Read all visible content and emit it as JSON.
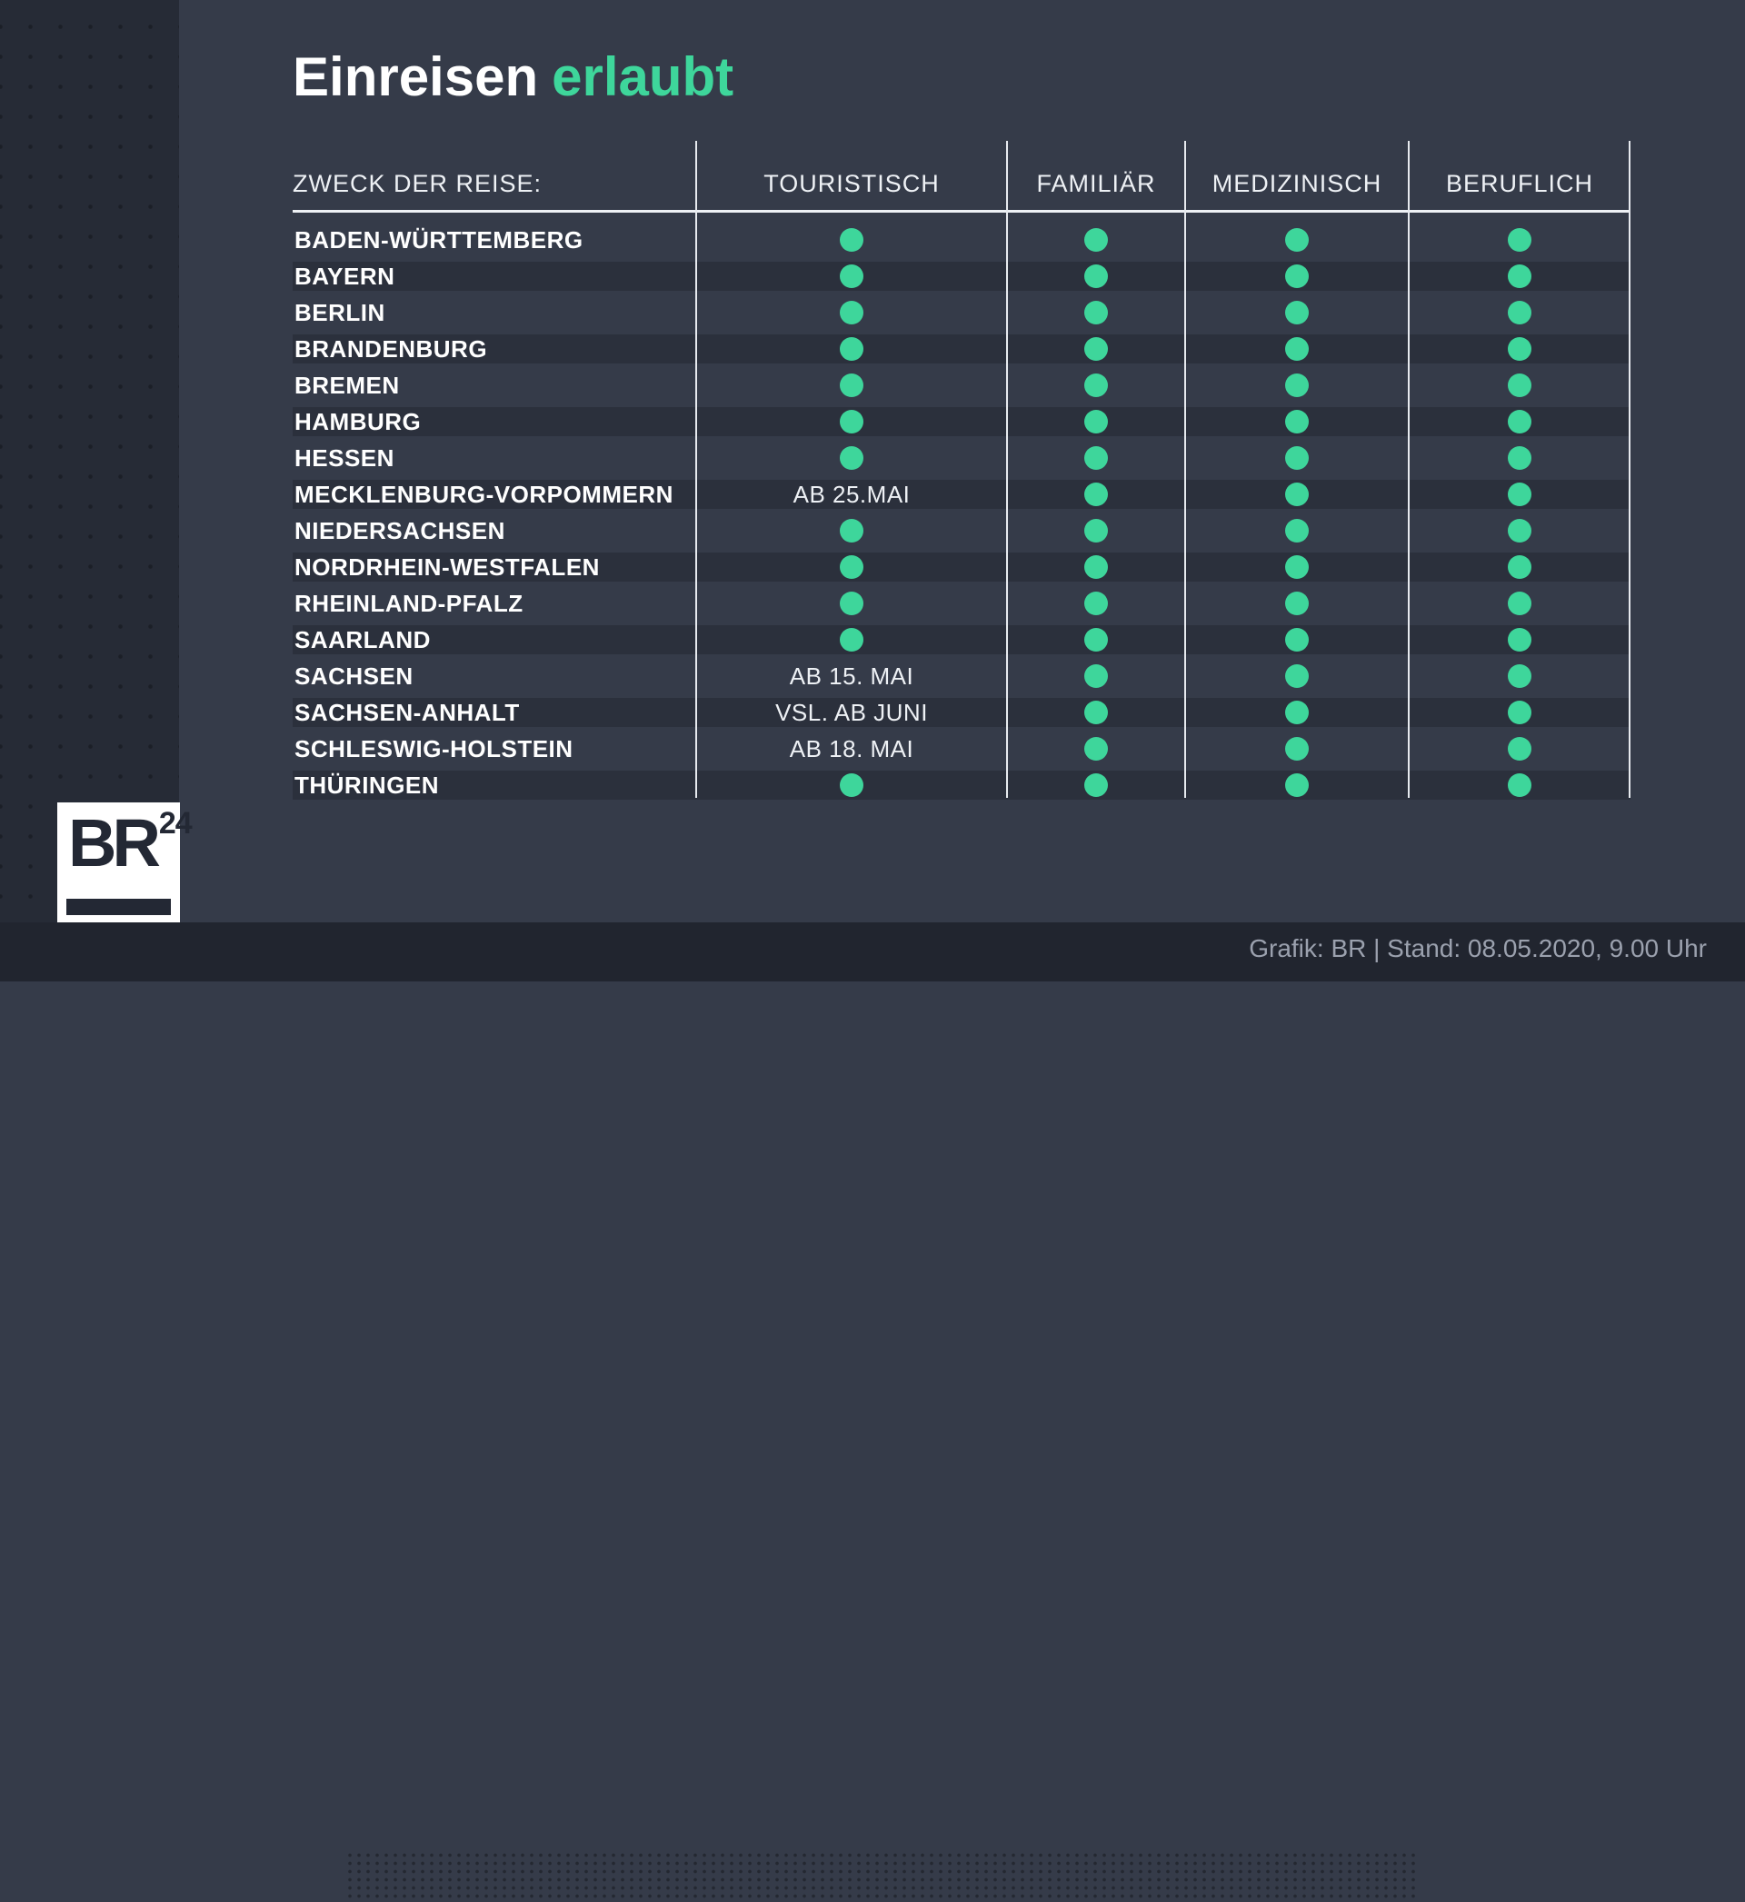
{
  "chart_data": {
    "type": "table",
    "title": {
      "main": "Einreisen",
      "highlight": "erlaubt"
    },
    "purpose_label": "ZWECK DER REISE:",
    "columns": [
      "TOURISTISCH",
      "FAMILIÄR",
      "MEDIZINISCH",
      "BERUFLICH"
    ],
    "allowed_symbol": "green-dot",
    "rows": [
      {
        "state": "BADEN-WÜRTTEMBERG",
        "touristisch": "erlaubt",
        "familiaer": "erlaubt",
        "medizinisch": "erlaubt",
        "beruflich": "erlaubt"
      },
      {
        "state": "BAYERN",
        "touristisch": "erlaubt",
        "familiaer": "erlaubt",
        "medizinisch": "erlaubt",
        "beruflich": "erlaubt"
      },
      {
        "state": "BERLIN",
        "touristisch": "erlaubt",
        "familiaer": "erlaubt",
        "medizinisch": "erlaubt",
        "beruflich": "erlaubt"
      },
      {
        "state": "BRANDENBURG",
        "touristisch": "erlaubt",
        "familiaer": "erlaubt",
        "medizinisch": "erlaubt",
        "beruflich": "erlaubt"
      },
      {
        "state": "BREMEN",
        "touristisch": "erlaubt",
        "familiaer": "erlaubt",
        "medizinisch": "erlaubt",
        "beruflich": "erlaubt"
      },
      {
        "state": "HAMBURG",
        "touristisch": "erlaubt",
        "familiaer": "erlaubt",
        "medizinisch": "erlaubt",
        "beruflich": "erlaubt"
      },
      {
        "state": "HESSEN",
        "touristisch": "erlaubt",
        "familiaer": "erlaubt",
        "medizinisch": "erlaubt",
        "beruflich": "erlaubt"
      },
      {
        "state": "MECKLENBURG-VORPOMMERN",
        "touristisch": "AB 25.MAI",
        "familiaer": "erlaubt",
        "medizinisch": "erlaubt",
        "beruflich": "erlaubt"
      },
      {
        "state": "NIEDERSACHSEN",
        "touristisch": "erlaubt",
        "familiaer": "erlaubt",
        "medizinisch": "erlaubt",
        "beruflich": "erlaubt"
      },
      {
        "state": "NORDRHEIN-WESTFALEN",
        "touristisch": "erlaubt",
        "familiaer": "erlaubt",
        "medizinisch": "erlaubt",
        "beruflich": "erlaubt"
      },
      {
        "state": "RHEINLAND-PFALZ",
        "touristisch": "erlaubt",
        "familiaer": "erlaubt",
        "medizinisch": "erlaubt",
        "beruflich": "erlaubt"
      },
      {
        "state": "SAARLAND",
        "touristisch": "erlaubt",
        "familiaer": "erlaubt",
        "medizinisch": "erlaubt",
        "beruflich": "erlaubt"
      },
      {
        "state": "SACHSEN",
        "touristisch": "AB 15. MAI",
        "familiaer": "erlaubt",
        "medizinisch": "erlaubt",
        "beruflich": "erlaubt"
      },
      {
        "state": "SACHSEN-ANHALT",
        "touristisch": "VSL. AB JUNI",
        "familiaer": "erlaubt",
        "medizinisch": "erlaubt",
        "beruflich": "erlaubt"
      },
      {
        "state": "SCHLESWIG-HOLSTEIN",
        "touristisch": "AB 18. MAI",
        "familiaer": "erlaubt",
        "medizinisch": "erlaubt",
        "beruflich": "erlaubt"
      },
      {
        "state": "THÜRINGEN",
        "touristisch": "erlaubt",
        "familiaer": "erlaubt",
        "medizinisch": "erlaubt",
        "beruflich": "erlaubt"
      }
    ]
  },
  "logo": {
    "brand": "BR",
    "number": "24"
  },
  "footer": {
    "credit": "Grafik: BR | Stand: 08.05.2020, 9.00 Uhr"
  },
  "colors": {
    "allowed_green": "#3ed69b",
    "page_bg": "#353b49",
    "stripe": "#2b303c",
    "sidebar": "#262b36",
    "bottom_band": "#21252f"
  }
}
